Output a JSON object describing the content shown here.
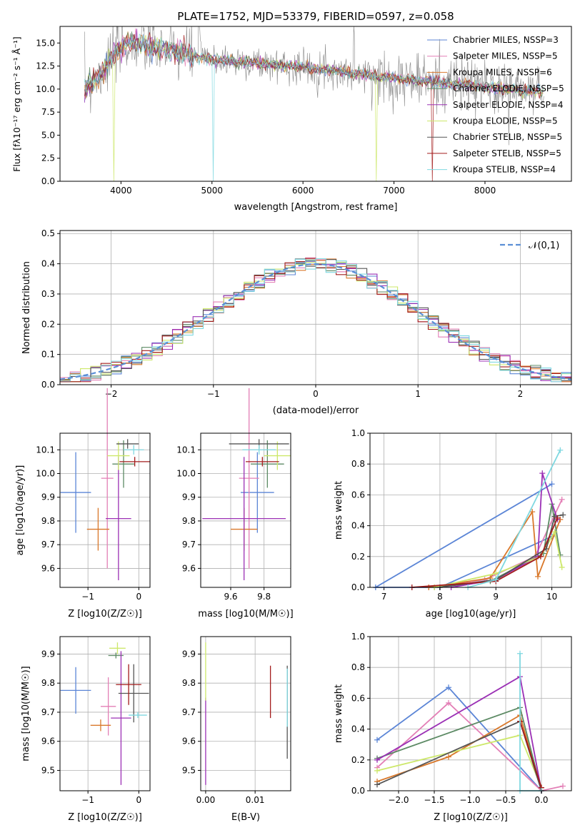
{
  "colors": [
    "#5b85d6",
    "#e37fb6",
    "#d9782b",
    "#5c8a64",
    "#9b30b5",
    "#cde86a",
    "#555555",
    "#a31c1c",
    "#7fd8e0"
  ],
  "chart_data": [
    {
      "id": "spectrum",
      "type": "line",
      "title": "PLATE=1752, MJD=53379, FIBERID=0597, z=0.058",
      "xlabel": "wavelength [Angstrom, rest frame]",
      "ylabel": "Flux [fλ10⁻¹⁷ erg cm⁻² s⁻¹ Å⁻¹]",
      "xlim": [
        3330,
        8950
      ],
      "ylim": [
        0,
        16.8
      ],
      "xticks": [
        4000,
        5000,
        6000,
        7000,
        8000
      ],
      "yticks": [
        0,
        2.5,
        5.0,
        7.5,
        10.0,
        12.5,
        15.0
      ],
      "ytick_labels": [
        "0.0",
        "2.5",
        "5.0",
        "7.5",
        "10.0",
        "12.5",
        "15.0"
      ],
      "legend_position": "top-right",
      "series": [
        {
          "name": "Chabrier MILES, NSSP=3"
        },
        {
          "name": "Salpeter MILES, NSSP=5"
        },
        {
          "name": "Kroupa MILES, NSSP=6"
        },
        {
          "name": "Chabrier ELODIE, NSSP=5"
        },
        {
          "name": "Salpeter ELODIE, NSSP=4"
        },
        {
          "name": "Kroupa ELODIE, NSSP=5"
        },
        {
          "name": "Chabrier STELIB, NSSP=5"
        },
        {
          "name": "Salpeter STELIB, NSSP=5"
        },
        {
          "name": "Kroupa STELIB, NSSP=4"
        }
      ],
      "continuum": {
        "x": [
          3600,
          3700,
          3800,
          3900,
          4000,
          4100,
          4200,
          4400,
          4600,
          4800,
          5000,
          5500,
          6000,
          6500,
          7000,
          7500,
          8000,
          8500
        ],
        "y": [
          10.0,
          11.0,
          12.0,
          13.5,
          14.5,
          15.0,
          14.8,
          14.5,
          14.0,
          13.7,
          13.2,
          12.8,
          12.4,
          11.8,
          11.2,
          10.7,
          10.2,
          9.8
        ]
      }
    },
    {
      "id": "residuals",
      "type": "line",
      "xlabel": "(data-model)/error",
      "ylabel": "Normed distribution",
      "xlim": [
        -2.5,
        2.5
      ],
      "ylim": [
        0,
        0.51
      ],
      "xticks": [
        -2,
        -1,
        0,
        1,
        2
      ],
      "xtick_labels": [
        "−2",
        "−1",
        "0",
        "1",
        "2"
      ],
      "yticks": [
        0,
        0.1,
        0.2,
        0.3,
        0.4,
        0.5
      ],
      "ytick_labels": [
        "0.0",
        "0.1",
        "0.2",
        "0.3",
        "0.4",
        "0.5"
      ],
      "legend": "𝒩(0,1)",
      "legend_position": "top-right",
      "reference": {
        "type": "gaussian",
        "mean": 0,
        "sigma": 1
      }
    },
    {
      "id": "age_vs_Z",
      "type": "scatter",
      "xlabel": "Z [log10(Z/Z☉)]",
      "ylabel": "age  [log10(age/yr)]",
      "xlim": [
        -1.55,
        0.22
      ],
      "ylim": [
        9.52,
        10.17
      ],
      "xticks": [
        -1,
        0
      ],
      "xtick_labels": [
        "−1",
        "0"
      ],
      "yticks": [
        9.6,
        9.7,
        9.8,
        9.9,
        10.0,
        10.1
      ],
      "ytick_labels": [
        "9.6",
        "9.7",
        "9.8",
        "9.9",
        "10.0",
        "10.1"
      ],
      "points": [
        {
          "x": -1.24,
          "y": 9.92,
          "xerr": 0.3,
          "yerr": 0.17
        },
        {
          "x": -0.62,
          "y": 9.98,
          "xerr": 0.12,
          "yerr": 0.38
        },
        {
          "x": -0.8,
          "y": 9.765,
          "xerr": 0.22,
          "yerr": 0.09
        },
        {
          "x": -0.3,
          "y": 10.04,
          "xerr": 0.22,
          "yerr": 0.1
        },
        {
          "x": -0.4,
          "y": 9.81,
          "xerr": 0.25,
          "yerr": 0.26
        },
        {
          "x": -0.4,
          "y": 10.075,
          "xerr": 0.22,
          "yerr": 0.06
        },
        {
          "x": -0.22,
          "y": 10.125,
          "xerr": 0.22,
          "yerr": 0.02
        },
        {
          "x": -0.08,
          "y": 10.05,
          "xerr": 0.3,
          "yerr": 0.02
        },
        {
          "x": -0.1,
          "y": 10.1,
          "xerr": 0.2,
          "yerr": 0.02
        }
      ]
    },
    {
      "id": "age_vs_mass",
      "type": "scatter",
      "xlabel": "mass [log10(M/M☉)]",
      "xlim": [
        9.42,
        9.96
      ],
      "ylim": [
        9.52,
        10.17
      ],
      "xticks": [
        9.6,
        9.8
      ],
      "xtick_labels": [
        "9.6",
        "9.8"
      ],
      "yticks": [
        9.6,
        9.7,
        9.8,
        9.9,
        10.0,
        10.1
      ],
      "ytick_labels": [
        "9.6",
        "9.7",
        "9.8",
        "9.9",
        "10.0",
        "10.1"
      ],
      "points": [
        {
          "x": 9.76,
          "y": 9.92,
          "xerr": 0.1,
          "yerr": 0.17
        },
        {
          "x": 9.71,
          "y": 9.98,
          "xerr": 0.06,
          "yerr": 0.38
        },
        {
          "x": 9.68,
          "y": 9.765,
          "xerr": 0.08,
          "yerr": 0.09
        },
        {
          "x": 9.82,
          "y": 10.04,
          "xerr": 0.1,
          "yerr": 0.1
        },
        {
          "x": 9.68,
          "y": 9.81,
          "xerr": 0.25,
          "yerr": 0.26
        },
        {
          "x": 9.88,
          "y": 10.075,
          "xerr": 0.08,
          "yerr": 0.06
        },
        {
          "x": 9.77,
          "y": 10.125,
          "xerr": 0.18,
          "yerr": 0.02
        },
        {
          "x": 9.79,
          "y": 10.05,
          "xerr": 0.1,
          "yerr": 0.02
        },
        {
          "x": 9.77,
          "y": 10.1,
          "xerr": 0.1,
          "yerr": 0.02
        }
      ]
    },
    {
      "id": "weight_vs_age",
      "type": "line",
      "xlabel": "age  [log10(age/yr)]",
      "ylabel": "mass weight",
      "xlim": [
        6.75,
        10.35
      ],
      "ylim": [
        0,
        1.0
      ],
      "xticks": [
        7,
        8,
        9,
        10
      ],
      "xtick_labels": [
        "7",
        "8",
        "9",
        "10"
      ],
      "yticks": [
        0,
        0.2,
        0.4,
        0.6,
        0.8,
        1.0
      ],
      "ytick_labels": [
        "0.0",
        "0.2",
        "0.4",
        "0.6",
        "0.8",
        "1.0"
      ],
      "series": [
        {
          "x": [
            10.0,
            6.85,
            8.0,
            10.0
          ],
          "y": [
            0.67,
            0.0,
            0.0,
            0.33
          ]
        },
        {
          "x": [
            7.8,
            8.8,
            9.7,
            10.18
          ],
          "y": [
            0.0,
            0.05,
            0.2,
            0.57
          ]
        },
        {
          "x": [
            7.8,
            8.9,
            9.65,
            9.75,
            10.15
          ],
          "y": [
            0.0,
            0.06,
            0.49,
            0.07,
            0.44
          ]
        },
        {
          "x": [
            7.9,
            8.9,
            9.85,
            10.0,
            10.15
          ],
          "y": [
            0.0,
            0.04,
            0.22,
            0.54,
            0.21
          ]
        },
        {
          "x": [
            8.2,
            9.0,
            9.75,
            9.83,
            10.1
          ],
          "y": [
            0.0,
            0.05,
            0.2,
            0.74,
            0.44
          ]
        },
        {
          "x": [
            7.9,
            9.0,
            9.8,
            10.05,
            10.18
          ],
          "y": [
            0.0,
            0.09,
            0.2,
            0.36,
            0.13
          ]
        },
        {
          "x": [
            8.0,
            9.0,
            9.9,
            10.05,
            10.2
          ],
          "y": [
            0.0,
            0.05,
            0.25,
            0.46,
            0.47
          ]
        },
        {
          "x": [
            7.5,
            9.0,
            9.8,
            10.1
          ],
          "y": [
            0.0,
            0.04,
            0.2,
            0.45
          ]
        },
        {
          "x": [
            8.5,
            9.0,
            10.15
          ],
          "y": [
            0.0,
            0.05,
            0.89
          ]
        }
      ]
    },
    {
      "id": "mass_vs_Z",
      "type": "scatter",
      "xlabel": "Z [log10(Z/Z☉)]",
      "ylabel": "mass [log10(M/M☉)]",
      "xlim": [
        -1.55,
        0.22
      ],
      "ylim": [
        9.43,
        9.96
      ],
      "xticks": [
        -1,
        0
      ],
      "xtick_labels": [
        "−1",
        "0"
      ],
      "yticks": [
        9.5,
        9.6,
        9.7,
        9.8,
        9.9
      ],
      "ytick_labels": [
        "9.5",
        "9.6",
        "9.7",
        "9.8",
        "9.9"
      ],
      "points": [
        {
          "x": -1.24,
          "y": 9.775,
          "xerr": 0.3,
          "yerr": 0.08
        },
        {
          "x": -0.6,
          "y": 9.72,
          "xerr": 0.15,
          "yerr": 0.1
        },
        {
          "x": -0.75,
          "y": 9.655,
          "xerr": 0.2,
          "yerr": 0.02
        },
        {
          "x": -0.45,
          "y": 9.895,
          "xerr": 0.15,
          "yerr": 0.01
        },
        {
          "x": -0.35,
          "y": 9.68,
          "xerr": 0.2,
          "yerr": 0.23
        },
        {
          "x": -0.42,
          "y": 9.92,
          "xerr": 0.16,
          "yerr": 0.02
        },
        {
          "x": -0.1,
          "y": 9.765,
          "xerr": 0.3,
          "yerr": 0.1
        },
        {
          "x": -0.2,
          "y": 9.795,
          "xerr": 0.25,
          "yerr": 0.07
        },
        {
          "x": -0.02,
          "y": 9.69,
          "xerr": 0.18,
          "yerr": 0.01
        }
      ]
    },
    {
      "id": "mass_vs_ebv",
      "type": "scatter",
      "xlabel": "E(B-V)",
      "xlim": [
        -0.001,
        0.0172
      ],
      "ylim": [
        9.43,
        9.96
      ],
      "xticks": [
        0.0,
        0.01
      ],
      "xtick_labels": [
        "0.00",
        "0.01"
      ],
      "yticks": [
        9.5,
        9.6,
        9.7,
        9.8,
        9.9
      ],
      "ytick_labels": [
        "9.5",
        "9.6",
        "9.7",
        "9.8",
        "9.9"
      ],
      "points": [
        {
          "x": 0.0,
          "y": 9.6,
          "xerr": 0,
          "yerr": 0.15
        },
        {
          "x": 0.0,
          "y": 9.84,
          "xerr": 0,
          "yerr": 0.1
        },
        {
          "x": 0.0131,
          "y": 9.77,
          "xerr": 0,
          "yerr": 0.09
        },
        {
          "x": 0.0165,
          "y": 9.7,
          "xerr": 0,
          "yerr": 0.16
        },
        {
          "x": 0.0165,
          "y": 9.75,
          "xerr": 0,
          "yerr": 0.1
        }
      ],
      "point_colors": [
        4,
        5,
        7,
        6,
        8
      ]
    },
    {
      "id": "weight_vs_Z",
      "type": "line",
      "xlabel": "Z [log10(Z/Z☉)]",
      "ylabel": "mass weight",
      "xlim": [
        -2.4,
        0.42
      ],
      "ylim": [
        0,
        1.0
      ],
      "xticks": [
        -2.0,
        -1.5,
        -1.0,
        -0.5,
        0.0
      ],
      "xtick_labels": [
        "−2.0",
        "−1.5",
        "−1.0",
        "−0.5",
        "0.0"
      ],
      "yticks": [
        0,
        0.2,
        0.4,
        0.6,
        0.8,
        1.0
      ],
      "ytick_labels": [
        "0.0",
        "0.2",
        "0.4",
        "0.6",
        "0.8",
        "1.0"
      ],
      "series": [
        {
          "x": [
            -2.3,
            -1.3,
            0.0
          ],
          "y": [
            0.33,
            0.67,
            0.0
          ]
        },
        {
          "x": [
            -2.3,
            -1.3,
            0.0,
            0.3
          ],
          "y": [
            0.15,
            0.57,
            0.0,
            0.03
          ]
        },
        {
          "x": [
            -2.3,
            -1.3,
            -0.3,
            0.0
          ],
          "y": [
            0.06,
            0.22,
            0.49,
            0.0
          ]
        },
        {
          "x": [
            -2.3,
            -0.3,
            0.0
          ],
          "y": [
            0.21,
            0.54,
            0.0
          ]
        },
        {
          "x": [
            -2.3,
            -0.3,
            0.0
          ],
          "y": [
            0.2,
            0.74,
            0.0
          ]
        },
        {
          "x": [
            -2.3,
            -0.3,
            0.0
          ],
          "y": [
            0.13,
            0.36,
            0.02
          ]
        },
        {
          "x": [
            -2.3,
            -0.3,
            0.0
          ],
          "y": [
            0.04,
            0.45,
            0.0
          ]
        },
        {
          "x": [
            -0.3,
            0.0
          ],
          "y": [
            0.45,
            0.02
          ]
        },
        {
          "x": [
            -0.3,
            -0.3,
            0.0
          ],
          "y": [
            0.89,
            0.0,
            0.0
          ]
        }
      ]
    }
  ]
}
